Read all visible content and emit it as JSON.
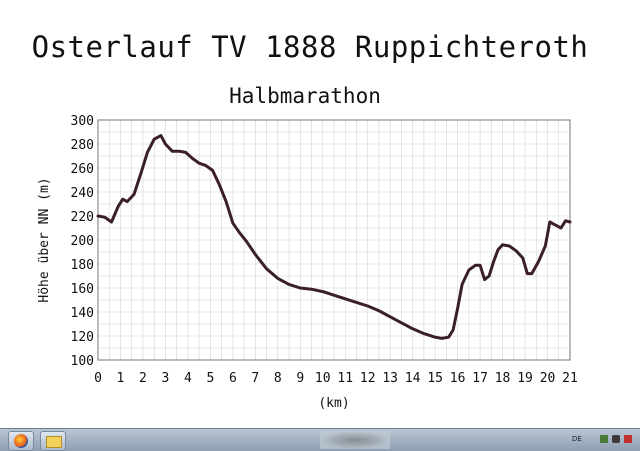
{
  "chart_data": {
    "type": "line",
    "title": "Osterlauf TV 1888 Ruppichteroth",
    "subtitle": "Halbmarathon",
    "xlabel": "(km)",
    "ylabel": "Höhe über NN (m)",
    "xlim": [
      0,
      21
    ],
    "ylim": [
      100,
      300
    ],
    "xticks": [
      "0",
      "1",
      "2",
      "3",
      "4",
      "5",
      "6",
      "7",
      "8",
      "9",
      "10",
      "11",
      "12",
      "13",
      "14",
      "15",
      "16",
      "17",
      "18",
      "19",
      "20",
      "21"
    ],
    "yticks": [
      "100",
      "120",
      "140",
      "160",
      "180",
      "200",
      "220",
      "240",
      "260",
      "280",
      "300"
    ],
    "grid": true,
    "series": [
      {
        "color": "#3a1f25",
        "x": [
          0,
          0.3,
          0.6,
          0.9,
          1.1,
          1.3,
          1.6,
          1.9,
          2.2,
          2.5,
          2.8,
          3.0,
          3.3,
          3.6,
          3.9,
          4.2,
          4.5,
          4.8,
          5.1,
          5.4,
          5.7,
          6.0,
          6.3,
          6.6,
          7.0,
          7.5,
          8.0,
          8.5,
          9.0,
          9.5,
          10.0,
          10.5,
          11.0,
          11.5,
          12.0,
          12.5,
          13.0,
          13.5,
          14.0,
          14.5,
          15.0,
          15.3,
          15.6,
          15.8,
          16.0,
          16.2,
          16.5,
          16.8,
          17.0,
          17.2,
          17.4,
          17.6,
          17.8,
          18.0,
          18.3,
          18.6,
          18.9,
          19.1,
          19.3,
          19.6,
          19.9,
          20.1,
          20.3,
          20.6,
          20.8,
          21.0
        ],
        "y": [
          220,
          219,
          215,
          228,
          234,
          232,
          238,
          255,
          273,
          284,
          287,
          280,
          274,
          274,
          273,
          268,
          264,
          262,
          258,
          246,
          232,
          214,
          206,
          199,
          188,
          176,
          168,
          163,
          160,
          159,
          157,
          154,
          151,
          148,
          145,
          141,
          136,
          131,
          126,
          122,
          119,
          118,
          119,
          125,
          143,
          163,
          175,
          179,
          179,
          167,
          170,
          182,
          192,
          196,
          195,
          191,
          185,
          172,
          172,
          182,
          195,
          215,
          213,
          210,
          216,
          215
        ]
      }
    ]
  }
}
